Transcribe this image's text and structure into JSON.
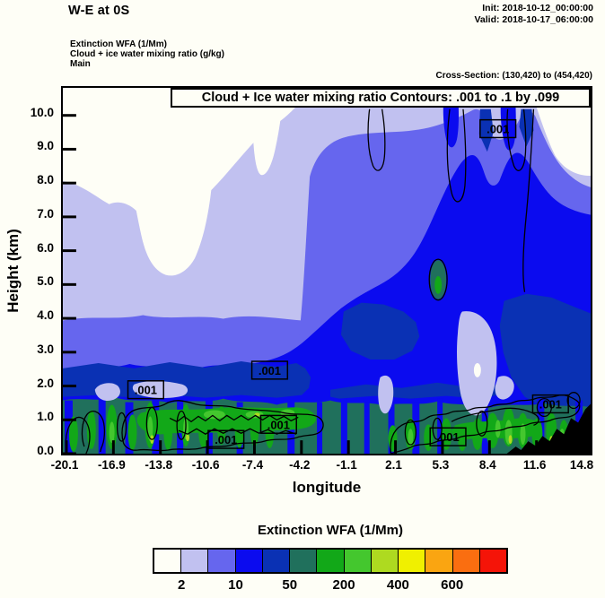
{
  "header": {
    "title": "W-E at 0S",
    "init_label": "Init: 2018-10-12_00:00:00",
    "valid_label": "Valid: 2018-10-17_06:00:00",
    "field_lines": [
      "Extinction WFA  (1/Mm)",
      "Cloud + ice water mixing ratio  (g/kg)",
      "Main"
    ],
    "cross_section": "Cross-Section: (130,420) to (454,420)"
  },
  "plot": {
    "inner_title": "Cloud + Ice water mixing ratio Contours: .001 to .1 by .099",
    "xlabel": "longitude",
    "ylabel": "Height (km)",
    "x_tick_labels": [
      "-20.1",
      "-16.9",
      "-13.8",
      "-10.6",
      "-7.4",
      "-4.2",
      "-1.1",
      "2.1",
      "5.3",
      "8.4",
      "11.6",
      "14.8"
    ],
    "y_tick_labels": [
      "0.0",
      "1.0",
      "2.0",
      "3.0",
      "4.0",
      "5.0",
      "6.0",
      "7.0",
      "8.0",
      "9.0",
      "10.0"
    ],
    "contour_label": ".001"
  },
  "colorbar": {
    "title": "Extinction WFA  (1/Mm)",
    "tick_labels": [
      "2",
      "10",
      "50",
      "200",
      "400",
      "600"
    ],
    "colors": [
      "#FEFEF6",
      "#C1C1F0",
      "#6666EE",
      "#0B0BEF",
      "#0A31B4",
      "#20705C",
      "#12A818",
      "#44C72E",
      "#AEDA20",
      "#F0F000",
      "#FAA511",
      "#FA6E10",
      "#F51408"
    ]
  },
  "chart_data": {
    "type": "heatmap",
    "subtype": "filled-contour vertical cross-section with line-contour overlay",
    "title": "Cloud + Ice water mixing ratio Contours: .001 to .1 by .099",
    "xlabel": "longitude",
    "ylabel": "Height (km)",
    "xlim": [
      -20.1,
      14.8
    ],
    "ylim": [
      0.0,
      10.8
    ],
    "x_ticks": [
      -20.1,
      -16.9,
      -13.8,
      -10.6,
      -7.4,
      -4.2,
      -1.1,
      2.1,
      5.3,
      8.4,
      11.6,
      14.8
    ],
    "y_ticks": [
      0.0,
      1.0,
      2.0,
      3.0,
      4.0,
      5.0,
      6.0,
      7.0,
      8.0,
      9.0,
      10.0
    ],
    "grid": false,
    "fill_variable": "Extinction WFA (1/Mm)",
    "fill_labeled_levels": [
      2,
      10,
      50,
      200,
      400,
      600
    ],
    "fill_palette": [
      "#FEFEF6",
      "#C1C1F0",
      "#6666EE",
      "#0B0BEF",
      "#0A31B4",
      "#20705C",
      "#12A818",
      "#44C72E",
      "#AEDA20",
      "#F0F000",
      "#FAA511",
      "#FA6E10",
      "#F51408"
    ],
    "legend_position": "bottom horizontal colorbar",
    "contour_variable": "Cloud + Ice water mixing ratio (g/kg)",
    "contour_levels_spec": ".001 to .1 by .099",
    "contour_levels": [
      0.001,
      0.1
    ],
    "contour_label_points_lon_km": [
      [
        9.0,
        9.6
      ],
      [
        -14.7,
        1.9
      ],
      [
        -6.4,
        2.4
      ],
      [
        -9.3,
        0.4
      ],
      [
        -5.8,
        0.8
      ],
      [
        5.7,
        0.5
      ],
      [
        12.6,
        1.4
      ]
    ],
    "field_description": "Low extinction (white/lavender) aloft on the left; broad blue plume (10-200 1/Mm) filling the mid-troposphere, deepening toward the east; shallow high-extinction layer (teal/green, 200-400 1/Mm) below ~2 km across the section; black terrain silhouette rising at the eastern edge above ~9-15E; thin cloud mixing-ratio contours (.001) aloft near 8-10 km in the east and along the boundary layer."
  }
}
